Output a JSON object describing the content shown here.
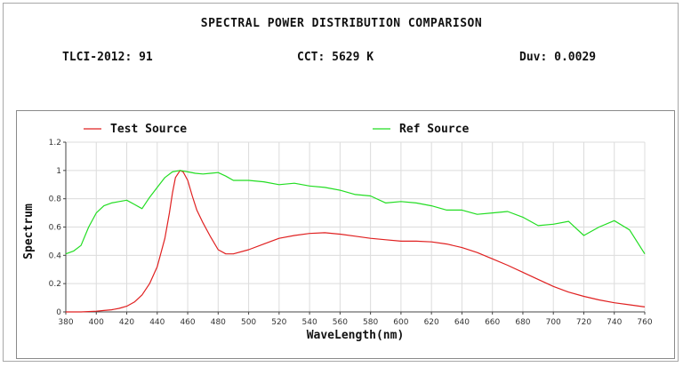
{
  "header": {
    "title": "SPECTRAL POWER DISTRIBUTION COMPARISON",
    "tlci": "TLCI-2012: 91",
    "cct": "CCT: 5629 K",
    "duv": "Duv: 0.0029"
  },
  "chart_data": {
    "type": "line",
    "title": "SPECTRAL POWER DISTRIBUTION COMPARISON",
    "xlabel": "WaveLength(nm)",
    "ylabel": "Spectrum",
    "xlim": [
      380,
      760
    ],
    "ylim": [
      0,
      1.2
    ],
    "x_ticks": [
      380,
      400,
      420,
      440,
      460,
      480,
      500,
      520,
      540,
      560,
      580,
      600,
      620,
      640,
      660,
      680,
      700,
      720,
      740,
      760
    ],
    "y_ticks": [
      0,
      0.2,
      0.4,
      0.6,
      0.8,
      1,
      1.2
    ],
    "grid": true,
    "legend_position": "top",
    "series": [
      {
        "name": "Test Source",
        "color": "#e02020",
        "x": [
          380,
          390,
          400,
          405,
          410,
          415,
          420,
          425,
          430,
          435,
          440,
          445,
          448,
          450,
          452,
          455,
          457,
          460,
          463,
          466,
          470,
          475,
          480,
          485,
          490,
          500,
          510,
          520,
          530,
          540,
          550,
          560,
          570,
          580,
          590,
          600,
          610,
          620,
          630,
          640,
          650,
          660,
          670,
          680,
          690,
          700,
          710,
          720,
          730,
          740,
          750,
          760
        ],
        "y": [
          0.0,
          0.0,
          0.005,
          0.01,
          0.015,
          0.025,
          0.04,
          0.07,
          0.12,
          0.2,
          0.32,
          0.52,
          0.7,
          0.84,
          0.95,
          1.0,
          0.99,
          0.93,
          0.82,
          0.72,
          0.63,
          0.53,
          0.44,
          0.41,
          0.41,
          0.44,
          0.48,
          0.52,
          0.54,
          0.555,
          0.56,
          0.55,
          0.535,
          0.52,
          0.51,
          0.5,
          0.5,
          0.495,
          0.48,
          0.455,
          0.42,
          0.375,
          0.33,
          0.28,
          0.23,
          0.18,
          0.14,
          0.11,
          0.085,
          0.065,
          0.05,
          0.035
        ]
      },
      {
        "name": "Ref Source",
        "color": "#22dd22",
        "x": [
          380,
          385,
          390,
          395,
          400,
          405,
          410,
          415,
          420,
          425,
          430,
          435,
          440,
          445,
          450,
          455,
          460,
          465,
          470,
          475,
          480,
          485,
          490,
          500,
          510,
          520,
          530,
          540,
          550,
          560,
          570,
          580,
          590,
          600,
          610,
          620,
          630,
          640,
          650,
          660,
          670,
          680,
          690,
          700,
          710,
          720,
          730,
          740,
          750,
          760
        ],
        "y": [
          0.41,
          0.43,
          0.47,
          0.6,
          0.7,
          0.75,
          0.77,
          0.78,
          0.79,
          0.76,
          0.73,
          0.81,
          0.88,
          0.95,
          0.99,
          1.0,
          0.99,
          0.98,
          0.975,
          0.98,
          0.985,
          0.96,
          0.93,
          0.93,
          0.92,
          0.9,
          0.91,
          0.89,
          0.88,
          0.86,
          0.83,
          0.82,
          0.77,
          0.78,
          0.77,
          0.75,
          0.72,
          0.72,
          0.69,
          0.7,
          0.71,
          0.67,
          0.61,
          0.62,
          0.64,
          0.54,
          0.6,
          0.645,
          0.58,
          0.41
        ]
      }
    ]
  }
}
